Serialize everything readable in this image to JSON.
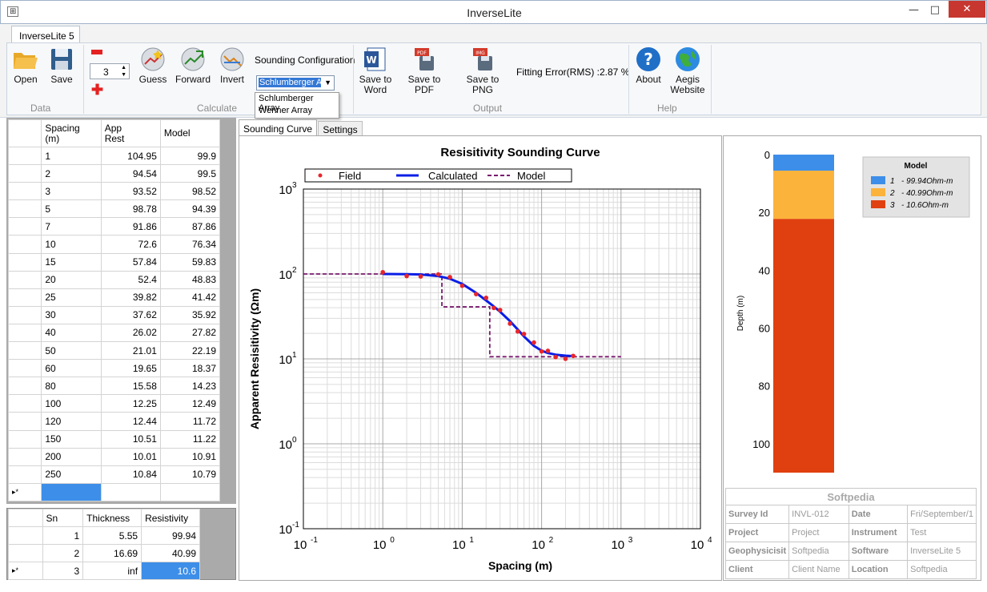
{
  "window": {
    "title": "InverseLite",
    "minimize": "—",
    "maximize": "□",
    "close": "✕"
  },
  "ribbon": {
    "tab": "InverseLite 5",
    "groups": {
      "data": "Data",
      "calculate": "Calculate",
      "output": "Output",
      "help": "Help"
    },
    "buttons": {
      "open": "Open",
      "save": "Save",
      "guess": "Guess",
      "forward": "Forward",
      "invert": "Invert",
      "save_word": "Save to Word",
      "save_word_l1": "Save to",
      "save_word_l2": "Word",
      "save_pdf": "Save to PDF",
      "save_png": "Save to PNG",
      "about": "About",
      "aegis_l1": "Aegis",
      "aegis_l2": "Website"
    },
    "layers_value": "3",
    "sounding_config_label": "Sounding Configuration",
    "sounding_config_value": "Schlumberger A",
    "sounding_options": [
      "Schlumberger Array",
      "Wenner Array"
    ],
    "fitting_error": "Fitting Error(RMS) :2.87 %"
  },
  "field_table": {
    "headers": [
      "Spacing (m)",
      "App Rest",
      "Model"
    ],
    "header_lines": [
      [
        "Spacing",
        "(m)"
      ],
      [
        "App",
        "Rest"
      ],
      [
        "Model",
        ""
      ]
    ],
    "rows": [
      [
        "1",
        "104.95",
        "99.9"
      ],
      [
        "2",
        "94.54",
        "99.5"
      ],
      [
        "3",
        "93.52",
        "98.52"
      ],
      [
        "5",
        "98.78",
        "94.39"
      ],
      [
        "7",
        "91.86",
        "87.86"
      ],
      [
        "10",
        "72.6",
        "76.34"
      ],
      [
        "15",
        "57.84",
        "59.83"
      ],
      [
        "20",
        "52.4",
        "48.83"
      ],
      [
        "25",
        "39.82",
        "41.42"
      ],
      [
        "30",
        "37.62",
        "35.92"
      ],
      [
        "40",
        "26.02",
        "27.82"
      ],
      [
        "50",
        "21.01",
        "22.19"
      ],
      [
        "60",
        "19.65",
        "18.37"
      ],
      [
        "80",
        "15.58",
        "14.23"
      ],
      [
        "100",
        "12.25",
        "12.49"
      ],
      [
        "120",
        "12.44",
        "11.72"
      ],
      [
        "150",
        "10.51",
        "11.22"
      ],
      [
        "200",
        "10.01",
        "10.91"
      ],
      [
        "250",
        "10.84",
        "10.79"
      ]
    ],
    "new_row_marker": "▸*"
  },
  "layer_table": {
    "headers": [
      "Sn",
      "Thickness",
      "Resistivity"
    ],
    "rows": [
      [
        "1",
        "5.55",
        "99.94"
      ],
      [
        "2",
        "16.69",
        "40.99"
      ],
      [
        "3",
        "inf",
        "10.6"
      ]
    ]
  },
  "chart_tabs": [
    "Sounding Curve",
    "Settings"
  ],
  "chart_data": {
    "type": "line",
    "title": "Resisitivity Sounding Curve",
    "xlabel": "Spacing (m)",
    "ylabel": "Apparent Resisitivity (Ωm)",
    "xscale": "log",
    "yscale": "log",
    "xlim": [
      0.1,
      10000
    ],
    "ylim": [
      0.1,
      1000
    ],
    "x_ticks": [
      "10",
      "10",
      "10",
      "10",
      "10",
      "10"
    ],
    "x_tick_exps": [
      "-1",
      "0",
      "1",
      "2",
      "3",
      "4"
    ],
    "y_ticks": [
      "10",
      "10",
      "10",
      "10",
      "10"
    ],
    "y_tick_exps": [
      "-1",
      "0",
      "1",
      "2",
      "3"
    ],
    "legend": [
      "Field",
      "Calculated",
      "Model"
    ],
    "legend_placement": "top",
    "grid": true,
    "series": [
      {
        "name": "Field",
        "type": "scatter",
        "color": "#e8262b",
        "x": [
          1,
          2,
          3,
          5,
          7,
          10,
          15,
          20,
          25,
          30,
          40,
          50,
          60,
          80,
          100,
          120,
          150,
          200,
          250
        ],
        "y": [
          104.95,
          94.54,
          93.52,
          98.78,
          91.86,
          72.6,
          57.84,
          52.4,
          39.82,
          37.62,
          26.02,
          21.01,
          19.65,
          15.58,
          12.25,
          12.44,
          10.51,
          10.01,
          10.84
        ]
      },
      {
        "name": "Calculated",
        "type": "line",
        "color": "#0a1ee6",
        "x": [
          1,
          2,
          3,
          5,
          7,
          10,
          15,
          20,
          25,
          30,
          40,
          50,
          60,
          80,
          100,
          120,
          150,
          200,
          250
        ],
        "y": [
          99.9,
          99.5,
          98.52,
          94.39,
          87.86,
          76.34,
          59.83,
          48.83,
          41.42,
          35.92,
          27.82,
          22.19,
          18.37,
          14.23,
          12.49,
          11.72,
          11.22,
          10.91,
          10.79
        ]
      },
      {
        "name": "Model",
        "type": "step",
        "color": "#7a1a6e",
        "x": [
          0.1,
          5.55,
          5.55,
          22.24,
          22.24,
          1000
        ],
        "y": [
          99.94,
          99.94,
          40.99,
          40.99,
          10.6,
          10.6
        ]
      }
    ]
  },
  "depth_model": {
    "ylabel": "Depth (m)",
    "ticks": [
      "0",
      "20",
      "40",
      "60",
      "80",
      "100"
    ],
    "max_depth": 110,
    "layers": [
      {
        "top": 0,
        "bottom": 5.55,
        "color": "#3d8ee8"
      },
      {
        "top": 5.55,
        "bottom": 22.24,
        "color": "#fbb33c"
      },
      {
        "top": 22.24,
        "bottom": 110,
        "color": "#e0400f"
      }
    ],
    "legend_title": "Model",
    "legend": [
      {
        "n": "1",
        "label": "- 99.94Ohm-m",
        "color": "#3d8ee8"
      },
      {
        "n": "2",
        "label": "- 40.99Ohm-m",
        "color": "#fbb33c"
      },
      {
        "n": "3",
        "label": "- 10.6Ohm-m",
        "color": "#e0400f"
      }
    ]
  },
  "info": {
    "title": "Softpedia",
    "rows": [
      [
        "Survey Id",
        "INVL-012",
        "Date",
        "Fri/September/1"
      ],
      [
        "Project",
        "Project",
        "Instrument",
        "Test"
      ],
      [
        "Geophysicisit",
        "Softpedia",
        "Software",
        "InverseLite 5"
      ],
      [
        "Client",
        "Client Name",
        "Location",
        "Softpedia"
      ]
    ]
  }
}
